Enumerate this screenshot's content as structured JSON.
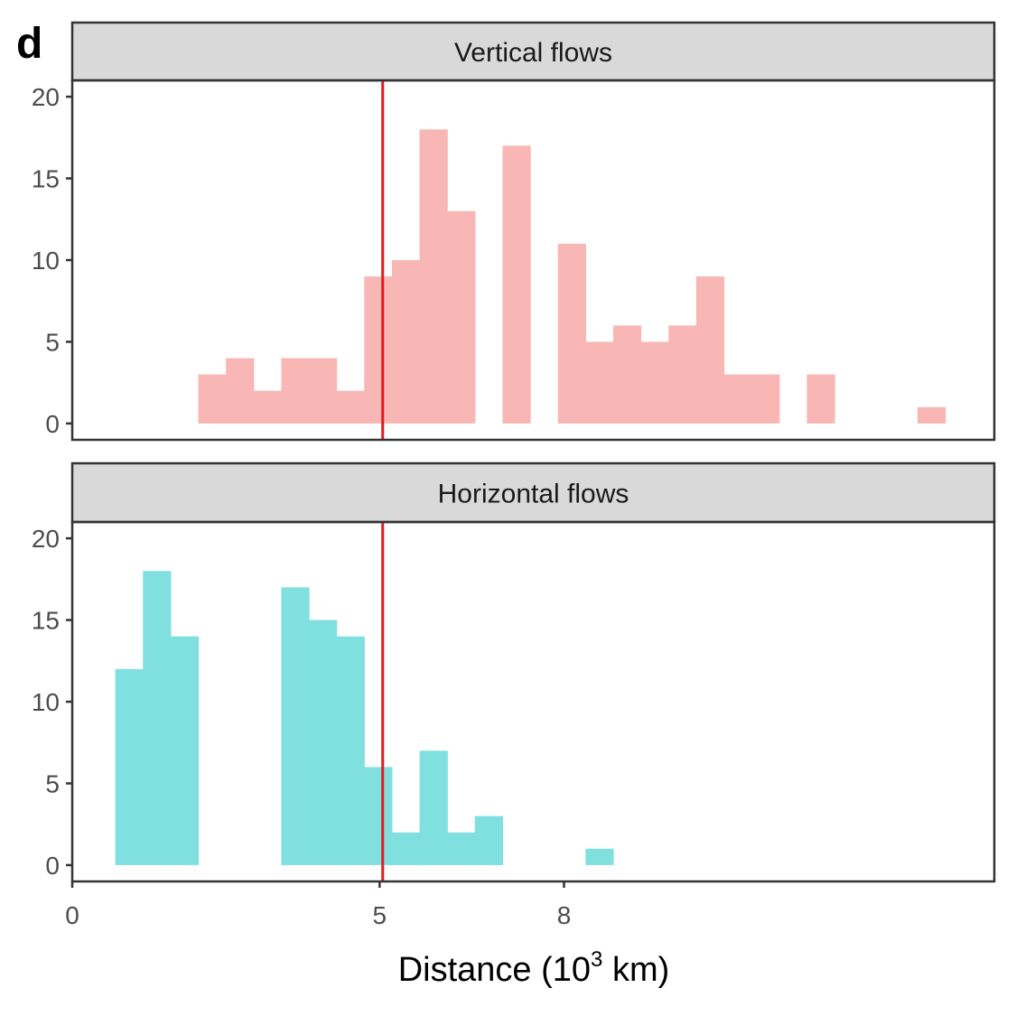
{
  "panel_letter": "d",
  "chart_data": {
    "type": "bar",
    "subtype": "histogram",
    "bin_width": 0.45,
    "xlabel": "Distance (10",
    "xlabel_superscript": "3",
    "xlabel_suffix": " km)",
    "xlim": [
      0,
      15
    ],
    "x_ticks": [
      0,
      5,
      8
    ],
    "ylim": [
      -1,
      21
    ],
    "y_ticks": [
      0,
      5,
      10,
      15,
      20
    ],
    "grid": false,
    "reference_line": {
      "x": 5.05,
      "color": "#E41A1C"
    },
    "panels": [
      {
        "title": "Vertical flows",
        "color": "#F8B7B5",
        "bins": [
          {
            "x_start": 2.05,
            "count": 3
          },
          {
            "x_start": 2.5,
            "count": 4
          },
          {
            "x_start": 2.95,
            "count": 2
          },
          {
            "x_start": 3.4,
            "count": 4
          },
          {
            "x_start": 3.85,
            "count": 4
          },
          {
            "x_start": 4.3,
            "count": 2
          },
          {
            "x_start": 4.75,
            "count": 9
          },
          {
            "x_start": 5.2,
            "count": 10
          },
          {
            "x_start": 5.65,
            "count": 18
          },
          {
            "x_start": 6.1,
            "count": 13
          },
          {
            "x_start": 6.55,
            "count": 0
          },
          {
            "x_start": 7.0,
            "count": 17
          },
          {
            "x_start": 7.45,
            "count": 0
          },
          {
            "x_start": 7.9,
            "count": 11
          },
          {
            "x_start": 8.35,
            "count": 5
          },
          {
            "x_start": 8.8,
            "count": 6
          },
          {
            "x_start": 9.25,
            "count": 5
          },
          {
            "x_start": 9.7,
            "count": 6
          },
          {
            "x_start": 10.15,
            "count": 9
          },
          {
            "x_start": 10.6,
            "count": 3
          },
          {
            "x_start": 11.05,
            "count": 3
          },
          {
            "x_start": 11.5,
            "count": 0
          },
          {
            "x_start": 11.95,
            "count": 3
          },
          {
            "x_start": 12.4,
            "count": 0
          },
          {
            "x_start": 12.85,
            "count": 0
          },
          {
            "x_start": 13.3,
            "count": 0
          },
          {
            "x_start": 13.75,
            "count": 1
          }
        ]
      },
      {
        "title": "Horizontal flows",
        "color": "#80DFDF",
        "bins": [
          {
            "x_start": 0.7,
            "count": 12
          },
          {
            "x_start": 1.15,
            "count": 18
          },
          {
            "x_start": 1.6,
            "count": 14
          },
          {
            "x_start": 2.05,
            "count": 0
          },
          {
            "x_start": 2.5,
            "count": 0
          },
          {
            "x_start": 2.95,
            "count": 0
          },
          {
            "x_start": 3.4,
            "count": 17
          },
          {
            "x_start": 3.85,
            "count": 15
          },
          {
            "x_start": 4.3,
            "count": 14
          },
          {
            "x_start": 4.75,
            "count": 6
          },
          {
            "x_start": 5.2,
            "count": 2
          },
          {
            "x_start": 5.65,
            "count": 7
          },
          {
            "x_start": 6.1,
            "count": 2
          },
          {
            "x_start": 6.55,
            "count": 3
          },
          {
            "x_start": 7.0,
            "count": 0
          },
          {
            "x_start": 7.45,
            "count": 0
          },
          {
            "x_start": 7.9,
            "count": 0
          },
          {
            "x_start": 8.35,
            "count": 1
          }
        ]
      }
    ]
  }
}
